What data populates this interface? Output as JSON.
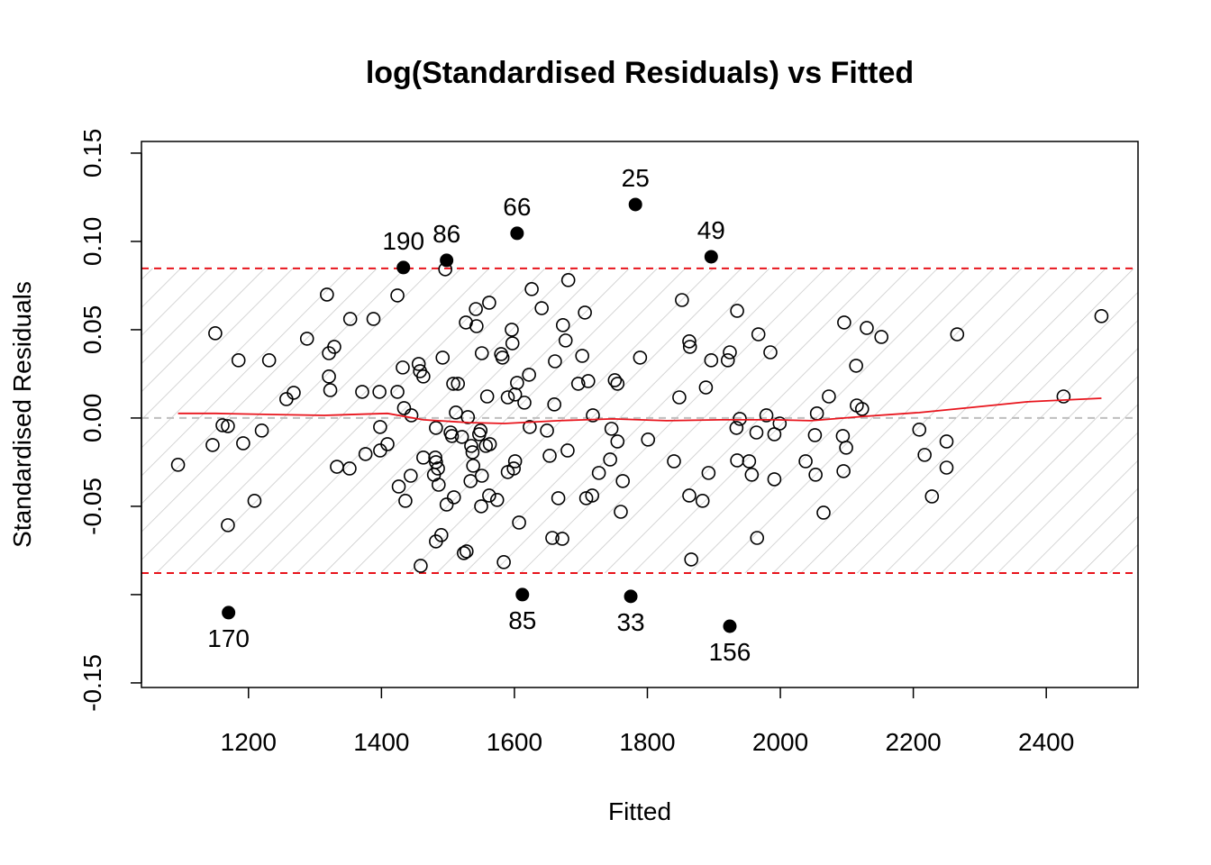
{
  "chart_data": {
    "type": "scatter",
    "title": "log(Standardised Residuals) vs Fitted",
    "x_label": "Fitted",
    "y_label": "Standardised Residuals",
    "xlim": [
      1039,
      2538
    ],
    "ylim": [
      -0.1526,
      0.1566
    ],
    "xticks": [
      1200,
      1400,
      1600,
      1800,
      2000,
      2200,
      2400
    ],
    "yticks": [
      {
        "value": -0.15,
        "label": "-0.15"
      },
      {
        "value": -0.1,
        "label": null
      },
      {
        "value": -0.05,
        "label": "-0.05"
      },
      {
        "value": 0,
        "label": "0.00"
      },
      {
        "value": 0.05,
        "label": "0.05"
      },
      {
        "value": 0.1,
        "label": "0.10"
      },
      {
        "value": 0.15,
        "label": "0.15"
      }
    ],
    "thresholds": [
      0.0847,
      -0.0878
    ],
    "threshold_color": "#e8141c",
    "reference_line": 0,
    "points": {
      "color": "#000000",
      "x": [
        1094,
        1150,
        1146,
        1161,
        1169,
        1169,
        1185,
        1192,
        1209,
        1220,
        1231,
        1257,
        1268,
        1288,
        1318,
        1321,
        1329,
        1321,
        1323,
        1333,
        1352,
        1353,
        1371,
        1376,
        1388,
        1397,
        1398,
        1398,
        1409,
        1424,
        1424,
        1426,
        1432,
        1434,
        1436,
        1444,
        1445,
        1456,
        1458,
        1463,
        1459,
        1463,
        1482,
        1481,
        1482,
        1479,
        1485,
        1486,
        1482,
        1490,
        1492,
        1496,
        1498,
        1504,
        1506,
        1508,
        1509,
        1512,
        1515,
        1521,
        1524,
        1528,
        1527,
        1530,
        1534,
        1535,
        1537,
        1538,
        1542,
        1543,
        1547,
        1549,
        1551,
        1551,
        1550,
        1557,
        1559,
        1562,
        1562,
        1563,
        1574,
        1580,
        1582,
        1584,
        1590,
        1590,
        1596,
        1597,
        1599,
        1601,
        1601,
        1604,
        1607,
        1615,
        1622,
        1623,
        1626,
        1641,
        1649,
        1653,
        1657,
        1660,
        1661,
        1666,
        1672,
        1673,
        1677,
        1680,
        1681,
        1696,
        1702,
        1706,
        1708,
        1711,
        1717,
        1718,
        1727,
        1744,
        1746,
        1751,
        1755,
        1755,
        1760,
        1763,
        1789,
        1801,
        1840,
        1848,
        1852,
        1863,
        1864,
        1863,
        1866,
        1883,
        1888,
        1892,
        1896,
        1921,
        1924,
        1935,
        1934,
        1935,
        1939,
        1953,
        1957,
        1964,
        1965,
        1967,
        1979,
        1985,
        1991,
        1991,
        1999,
        2038,
        2052,
        2053,
        2055,
        2065,
        2073,
        2094,
        2095,
        2096,
        2099,
        2114,
        2115,
        2123,
        2130,
        2152,
        2209,
        2217,
        2228,
        2250,
        2250,
        2266,
        2426,
        2483
      ],
      "y": [
        -0.0265,
        0.048,
        -0.0153,
        -0.0041,
        -0.0046,
        -0.0607,
        0.0327,
        -0.0143,
        -0.0469,
        -0.0071,
        0.0327,
        0.0107,
        0.0143,
        0.0449,
        0.0699,
        0.0367,
        0.0403,
        0.0235,
        0.0158,
        -0.0276,
        -0.0286,
        0.0561,
        0.0148,
        -0.0204,
        0.0561,
        0.0148,
        -0.0051,
        -0.0184,
        -0.0148,
        0.0694,
        0.0148,
        -0.0388,
        0.0286,
        0.0056,
        -0.0469,
        -0.0327,
        0.0015,
        0.0306,
        0.0265,
        0.0235,
        -0.0837,
        -0.0224,
        -0.0056,
        -0.0224,
        -0.025,
        -0.0321,
        -0.0286,
        -0.0378,
        -0.0699,
        -0.0663,
        0.0342,
        0.0842,
        -0.049,
        -0.0082,
        -0.0102,
        0.0194,
        -0.0449,
        0.0031,
        0.0194,
        -0.0107,
        -0.0765,
        -0.0755,
        0.0541,
        0.0005,
        -0.0357,
        -0.0158,
        -0.0194,
        -0.027,
        0.0617,
        0.052,
        -0.0092,
        -0.0071,
        0.0367,
        -0.0327,
        -0.05,
        -0.0158,
        0.0122,
        0.0653,
        -0.0439,
        -0.0148,
        -0.0464,
        0.0362,
        0.0342,
        -0.0816,
        -0.0306,
        0.0117,
        0.05,
        0.0423,
        -0.0286,
        -0.0245,
        0.0133,
        0.0199,
        -0.0592,
        0.0087,
        0.0245,
        -0.0051,
        0.073,
        0.0622,
        -0.0071,
        -0.0214,
        -0.0679,
        0.0077,
        0.0321,
        -0.0454,
        -0.0684,
        0.0526,
        0.0439,
        -0.0184,
        0.0781,
        0.0194,
        0.0352,
        0.0597,
        -0.0454,
        0.0209,
        -0.0439,
        0.0015,
        -0.0311,
        -0.0235,
        -0.0061,
        0.0214,
        -0.0133,
        0.0194,
        -0.0531,
        -0.0357,
        0.0342,
        -0.0122,
        -0.0245,
        0.0117,
        0.0668,
        0.0434,
        0.0403,
        -0.0439,
        -0.0801,
        -0.0469,
        0.0173,
        -0.0311,
        0.0327,
        0.0327,
        0.0372,
        0.0607,
        -0.0056,
        -0.024,
        -0.0005,
        -0.0245,
        -0.0321,
        -0.0082,
        -0.0679,
        0.0474,
        0.0015,
        0.0372,
        -0.0347,
        -0.0092,
        -0.0031,
        -0.0245,
        -0.0097,
        -0.0321,
        0.0026,
        -0.0536,
        0.0122,
        -0.0102,
        -0.0301,
        0.0541,
        -0.0168,
        0.0296,
        0.0071,
        0.0051,
        0.051,
        0.0459,
        -0.0066,
        -0.0209,
        -0.0444,
        -0.0281,
        -0.0133,
        0.0474,
        0.0122,
        0.0577
      ]
    },
    "outliers": {
      "color": "#000000",
      "x": [
        1433,
        1498,
        1604,
        1782,
        1896,
        1170,
        1612,
        1775,
        1924
      ],
      "y": [
        0.0852,
        0.0893,
        0.1046,
        0.1209,
        0.0913,
        -0.1102,
        -0.1,
        -0.101,
        -0.1179
      ],
      "labels": [
        "190",
        "86",
        "66",
        "25",
        "49",
        "170",
        "85",
        "33",
        "156"
      ]
    },
    "smooth": {
      "color": "#e8141c",
      "x": [
        1094,
        1151,
        1233,
        1314,
        1409,
        1463,
        1531,
        1585,
        1666,
        1748,
        1829,
        1911,
        1992,
        2046,
        2128,
        2209,
        2290,
        2372,
        2483
      ],
      "y": [
        0.0026,
        0.0026,
        0.002,
        0.0015,
        0.0026,
        -0.001,
        -0.0026,
        -0.0031,
        -0.0015,
        -0.0005,
        -0.0015,
        -0.001,
        -0.001,
        -0.0015,
        0.001,
        0.0031,
        0.0061,
        0.0092,
        0.0112
      ]
    }
  }
}
